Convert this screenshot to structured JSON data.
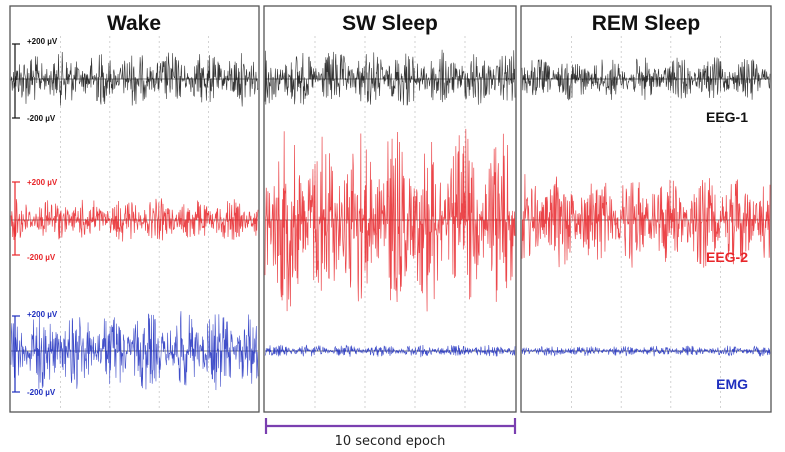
{
  "chart_data": {
    "type": "line",
    "panels": [
      {
        "title": "Wake"
      },
      {
        "title": "SW Sleep"
      },
      {
        "title": "REM Sleep"
      }
    ],
    "series": [
      {
        "name": "EEG-1",
        "color": "#111111",
        "scale_top": "+200 µV",
        "scale_bottom": "-200 µV",
        "peak_amplitude_uV": [
          150,
          160,
          120
        ]
      },
      {
        "name": "EEG-2",
        "color": "#e8262a",
        "scale_top": "+200 µV",
        "scale_bottom": "-200 µV",
        "peak_amplitude_uV": [
          120,
          500,
          260
        ]
      },
      {
        "name": "EMG",
        "color": "#1f2fbf",
        "scale_top": "+200 µV",
        "scale_bottom": "-200 µV",
        "peak_amplitude_uV": [
          220,
          35,
          30
        ]
      }
    ],
    "epoch_label": "10 second epoch",
    "epoch_color": "#7a3fb0",
    "grid": true
  }
}
